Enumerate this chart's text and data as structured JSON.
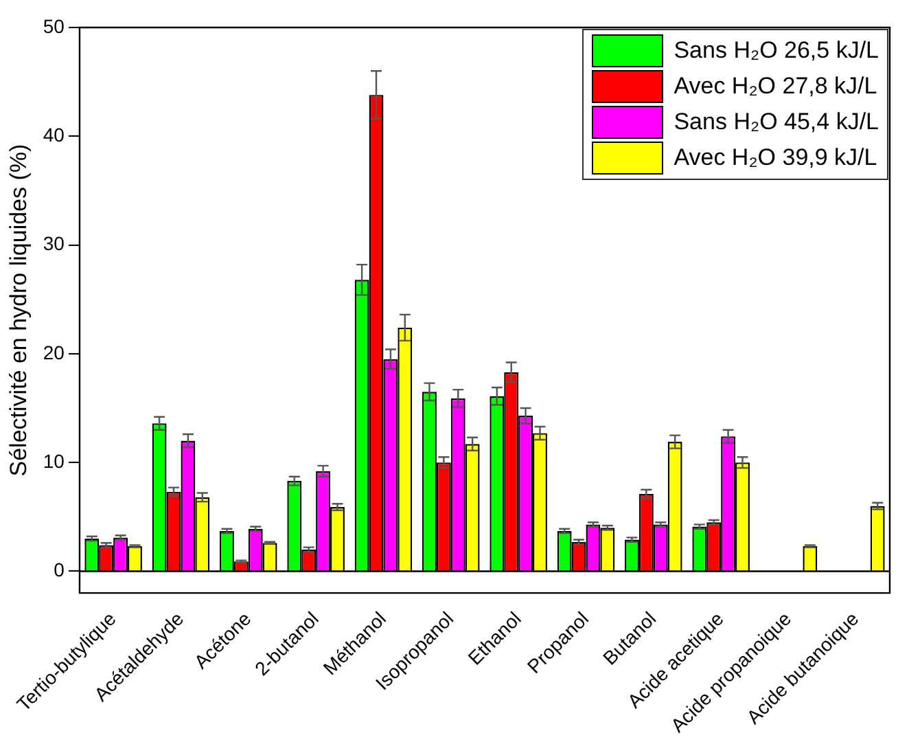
{
  "chart_data": {
    "type": "bar",
    "ylabel": "Sélectivité en hydro liquides (%)",
    "categories": [
      "Tertio-butylique",
      "Acétaldehyde",
      "Acétone",
      "2-butanol",
      "Méthanol",
      "Isopropanol",
      "Ethanol",
      "Propanol",
      "Butanol",
      "Acide acetique",
      "Acide propanoique",
      "Acide butanoique"
    ],
    "series": [
      {
        "name": "Sans H₂O 26,5 kJ/L",
        "color": "#00ff00",
        "values": [
          3.0,
          13.6,
          3.7,
          8.3,
          26.8,
          16.5,
          16.1,
          3.7,
          2.9,
          4.1,
          null,
          null
        ],
        "errors": [
          0.2,
          0.6,
          0.2,
          0.4,
          1.4,
          0.8,
          0.8,
          0.2,
          0.2,
          0.2,
          null,
          null
        ]
      },
      {
        "name": "Avec H₂O 27,8 kJ/L",
        "color": "#ff0000",
        "values": [
          2.4,
          7.3,
          0.9,
          2.0,
          43.8,
          10.0,
          18.3,
          2.7,
          7.1,
          4.5,
          null,
          null
        ],
        "errors": [
          0.2,
          0.4,
          0.1,
          0.2,
          2.2,
          0.5,
          0.9,
          0.2,
          0.4,
          0.2,
          null,
          null
        ]
      },
      {
        "name": "Sans H₂O 45,4 kJ/L",
        "color": "#ff00ff",
        "values": [
          3.1,
          12.0,
          3.9,
          9.2,
          19.5,
          15.9,
          14.3,
          4.3,
          4.3,
          12.4,
          null,
          null
        ],
        "errors": [
          0.2,
          0.6,
          0.2,
          0.5,
          0.9,
          0.8,
          0.7,
          0.2,
          0.2,
          0.6,
          null,
          null
        ]
      },
      {
        "name": "Avec H₂O 39,9 kJ/L",
        "color": "#ffff00",
        "values": [
          2.3,
          6.8,
          2.6,
          5.9,
          22.4,
          11.7,
          12.7,
          4.0,
          11.9,
          10.0,
          2.3,
          6.0
        ],
        "errors": [
          0.1,
          0.4,
          0.1,
          0.3,
          1.2,
          0.6,
          0.6,
          0.2,
          0.6,
          0.5,
          0.1,
          0.3
        ]
      }
    ],
    "ylim": [
      -2,
      50
    ],
    "yticks": [
      0,
      10,
      20,
      30,
      40,
      50
    ],
    "legend": "top right"
  }
}
